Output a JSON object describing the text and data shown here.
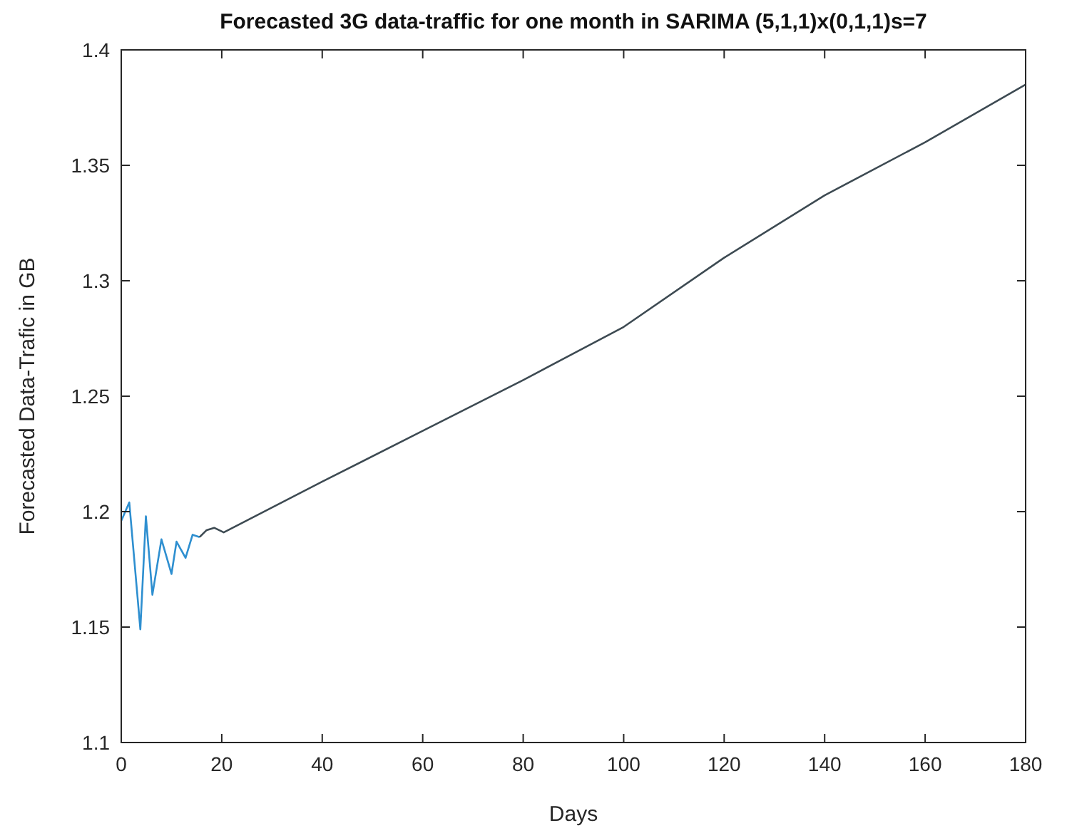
{
  "chart_data": {
    "type": "line",
    "title": "Forecasted 3G data-traffic for one month in SARIMA (5,1,1)x(0,1,1)s=7",
    "xlabel": "Days",
    "ylabel": "Forecasted Data-Trafic in GB",
    "xlim": [
      0,
      180
    ],
    "ylim": [
      1.1,
      1.4
    ],
    "xticks": [
      0,
      20,
      40,
      60,
      80,
      100,
      120,
      140,
      160,
      180
    ],
    "yticks": [
      1.1,
      1.15,
      1.2,
      1.25,
      1.3,
      1.35,
      1.4
    ],
    "grid": false,
    "marker": "none",
    "line_style": "solid",
    "series": [
      {
        "color": "#2e8fd0",
        "x": [
          0,
          1.6,
          3.8,
          4.9,
          6.2,
          8,
          10,
          11,
          12.8,
          14.2,
          15.6
        ],
        "values": [
          1.196,
          1.204,
          1.149,
          1.198,
          1.164,
          1.188,
          1.173,
          1.187,
          1.18,
          1.19,
          1.189
        ]
      },
      {
        "color": "#3d4a52",
        "x": [
          15.6,
          17,
          18.5,
          20.4,
          40,
          60,
          80,
          100,
          120,
          140,
          160,
          180
        ],
        "values": [
          1.189,
          1.192,
          1.193,
          1.191,
          1.213,
          1.235,
          1.257,
          1.28,
          1.31,
          1.337,
          1.36,
          1.385
        ]
      }
    ]
  }
}
